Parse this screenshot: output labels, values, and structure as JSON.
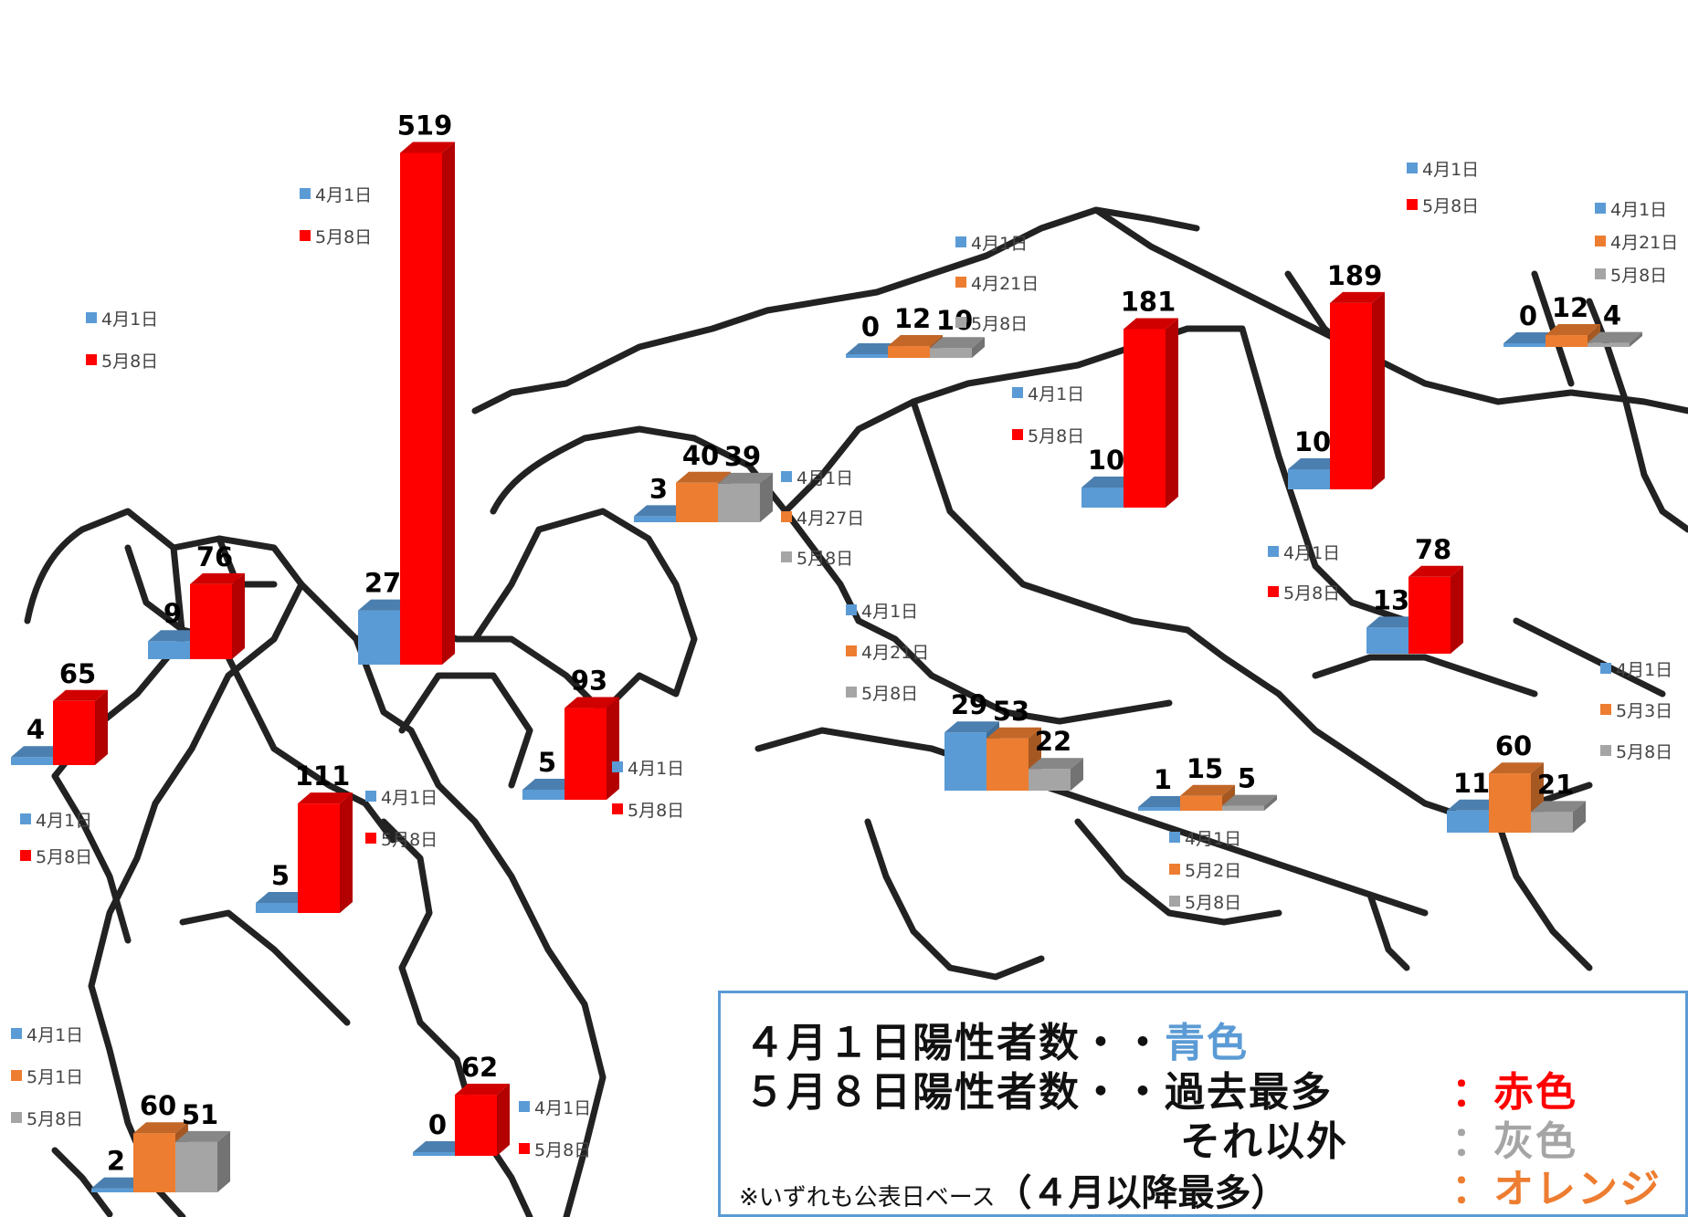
{
  "chart_data": {
    "type": "bar",
    "title": "",
    "colors": {
      "apr1": "#5b9bd5",
      "peak": "#ff0000",
      "other": "#a5a5a5",
      "max": "#ed7d31"
    },
    "groups": [
      {
        "legend": [
          "4月1日",
          "5月8日"
        ],
        "values": [
          4,
          65
        ],
        "kinds": [
          "apr1",
          "peak"
        ]
      },
      {
        "legend": [
          "4月1日",
          "5月8日"
        ],
        "values": [
          9,
          76
        ],
        "kinds": [
          "apr1",
          "peak"
        ]
      },
      {
        "legend": [
          "4月1日",
          "5月8日"
        ],
        "values": [
          5,
          111
        ],
        "kinds": [
          "apr1",
          "peak"
        ]
      },
      {
        "legend": [
          "4月1日",
          "5月8日"
        ],
        "values": [
          27,
          519
        ],
        "kinds": [
          "apr1",
          "peak"
        ]
      },
      {
        "legend": [
          "4月1日",
          "5月8日"
        ],
        "values": [
          5,
          93
        ],
        "kinds": [
          "apr1",
          "peak"
        ]
      },
      {
        "legend": [
          "4月1日",
          "5月8日"
        ],
        "values": [
          0,
          62
        ],
        "kinds": [
          "apr1",
          "peak"
        ]
      },
      {
        "legend": [
          "4月1日",
          "5月1日",
          "5月8日"
        ],
        "values": [
          2,
          60,
          51
        ],
        "kinds": [
          "apr1",
          "max",
          "other"
        ]
      },
      {
        "legend": [
          "4月1日",
          "4月27日",
          "5月8日"
        ],
        "values": [
          3,
          40,
          39
        ],
        "kinds": [
          "apr1",
          "max",
          "other"
        ]
      },
      {
        "legend": [
          "4月1日",
          "4月21日",
          "5月8日"
        ],
        "values": [
          0,
          12,
          10
        ],
        "kinds": [
          "apr1",
          "max",
          "other"
        ]
      },
      {
        "legend": [
          "4月1日",
          "5月8日"
        ],
        "values": [
          10,
          181
        ],
        "kinds": [
          "apr1",
          "peak"
        ]
      },
      {
        "legend": [
          "4月1日",
          "5月8日"
        ],
        "values": [
          10,
          189
        ],
        "kinds": [
          "apr1",
          "peak"
        ]
      },
      {
        "legend": [
          "4月1日",
          "4月21日",
          "5月8日"
        ],
        "values": [
          0,
          12,
          4
        ],
        "kinds": [
          "apr1",
          "max",
          "other"
        ]
      },
      {
        "legend": [
          "4月1日",
          "4月21日",
          "5月8日"
        ],
        "values": [
          29,
          53,
          22
        ],
        "kinds": [
          "apr1",
          "max",
          "other"
        ]
      },
      {
        "legend": [
          "4月1日",
          "5月8日"
        ],
        "values": [
          13,
          78
        ],
        "kinds": [
          "apr1",
          "peak"
        ]
      },
      {
        "legend": [
          "4月1日",
          "5月2日",
          "5月8日"
        ],
        "values": [
          1,
          15,
          5
        ],
        "kinds": [
          "apr1",
          "max",
          "other"
        ]
      },
      {
        "legend": [
          "4月1日",
          "5月3日",
          "5月8日"
        ],
        "values": [
          11,
          60,
          21
        ],
        "kinds": [
          "apr1",
          "max",
          "other"
        ]
      }
    ]
  },
  "legend_box": {
    "line1_label": "４月１日陽性者数・・",
    "line1_color_word": "青色",
    "line2_label": "５月８日陽性者数・・過去最多",
    "line2_color_word": "：赤色",
    "line3_label": "それ以外",
    "line3_color_word": "：灰色",
    "note_small": "※いずれも公表日ベース",
    "note_big": "（４月以降最多）",
    "line4_color_word": "：オレンジ"
  }
}
